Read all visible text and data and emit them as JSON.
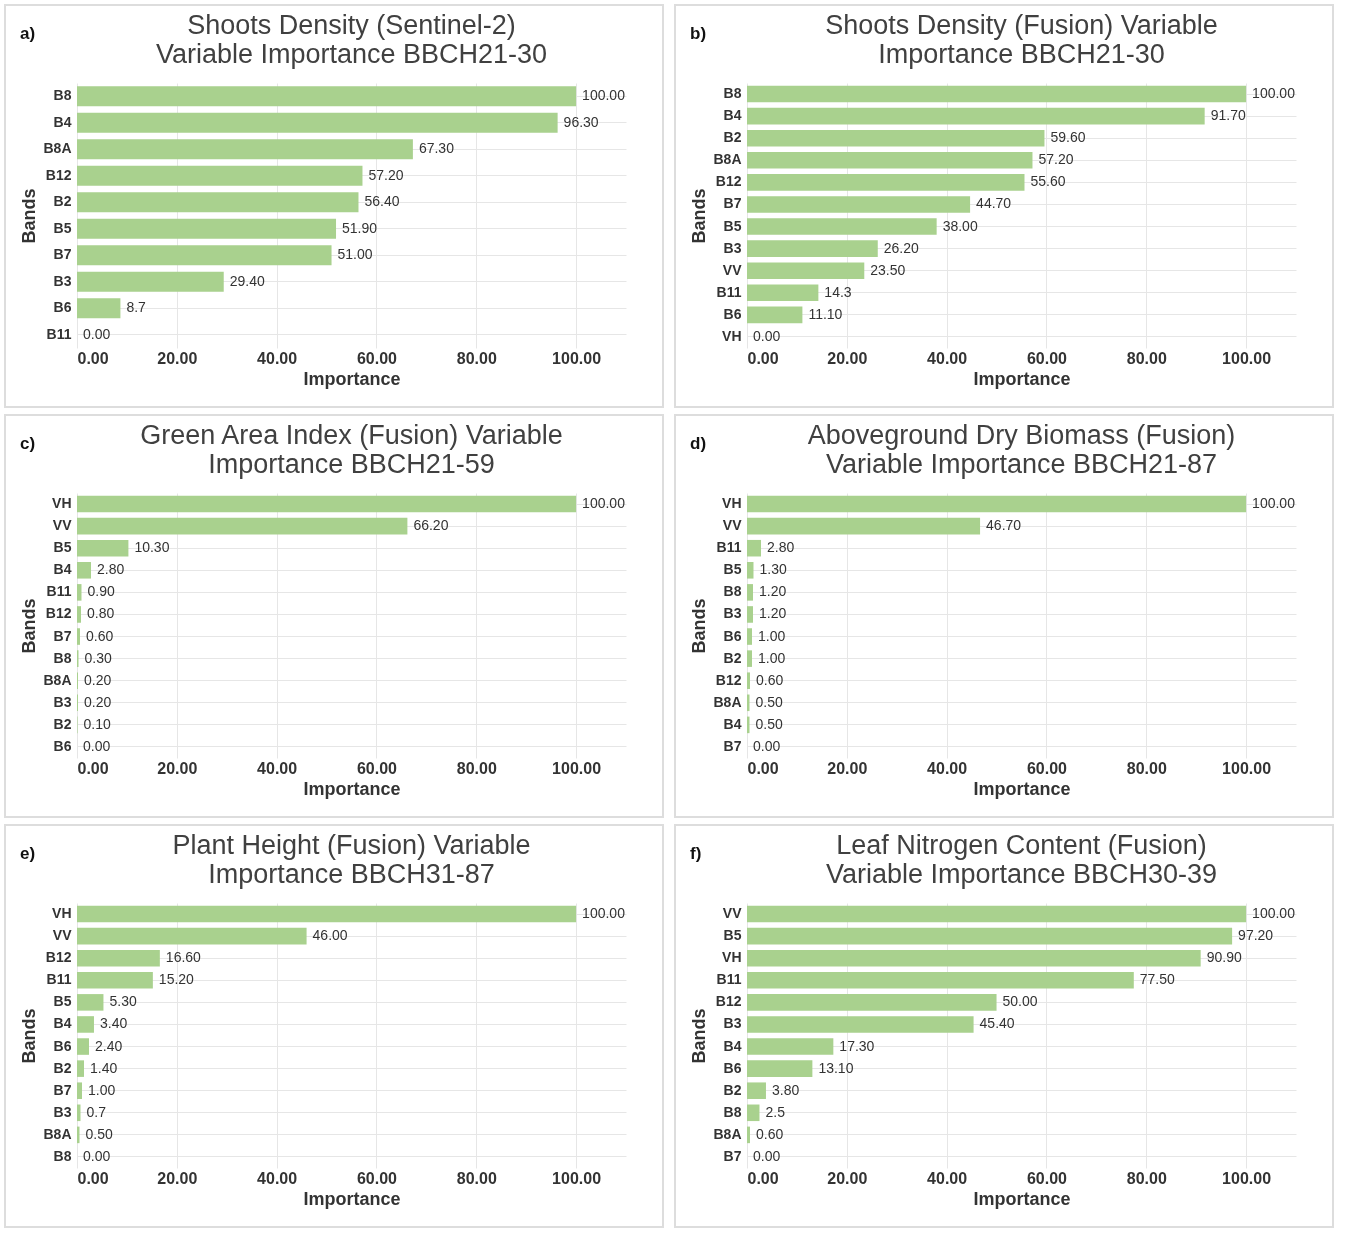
{
  "chart_data": [
    {
      "type": "bar",
      "orientation": "horizontal",
      "title": "Shoots Density (Sentinel-2) Variable Importance BBCH21-30",
      "xlabel": "Importance",
      "ylabel": "Bands",
      "annotations": [
        "a)"
      ],
      "categories": [
        "B8",
        "B4",
        "B8A",
        "B12",
        "B2",
        "B5",
        "B7",
        "B3",
        "B6",
        "B11"
      ],
      "values": [
        100,
        96.3,
        67.3,
        57.2,
        56.4,
        51.9,
        51,
        29.4,
        8.7,
        0
      ],
      "value_labels": [
        "100.00",
        "96.30",
        "67.30",
        "57.20",
        "56.40",
        "51.90",
        "51.00",
        "29.40",
        "8.7",
        "0.00"
      ],
      "color": "#a9d18e",
      "xlim": [
        0,
        110
      ],
      "xticks": [
        {
          "value": 0,
          "label": "0.00"
        },
        {
          "value": 20,
          "label": "20.00"
        },
        {
          "value": 40,
          "label": "40.00"
        },
        {
          "value": 60,
          "label": "60.00"
        },
        {
          "value": 80,
          "label": "80.00"
        },
        {
          "value": 100,
          "label": "100.00"
        }
      ],
      "grid": true
    },
    {
      "type": "bar",
      "orientation": "horizontal",
      "title": "Shoots Density (Fusion) Variable Importance BBCH21-30",
      "xlabel": "Importance",
      "ylabel": "Bands",
      "annotations": [
        "b)"
      ],
      "categories": [
        "B8",
        "B4",
        "B2",
        "B8A",
        "B12",
        "B7",
        "B5",
        "B3",
        "VV",
        "B11",
        "B6",
        "VH"
      ],
      "values": [
        100,
        91.7,
        59.6,
        57.2,
        55.6,
        44.7,
        38,
        26.2,
        23.5,
        14.3,
        11.1,
        0
      ],
      "value_labels": [
        "100.00",
        "91.70",
        "59.60",
        "57.20",
        "55.60",
        "44.70",
        "38.00",
        "26.20",
        "23.50",
        "14.3",
        "11.10",
        "0.00"
      ],
      "color": "#a9d18e",
      "xlim": [
        0,
        110
      ],
      "xticks": [
        {
          "value": 0,
          "label": "0.00"
        },
        {
          "value": 20,
          "label": "20.00"
        },
        {
          "value": 40,
          "label": "40.00"
        },
        {
          "value": 60,
          "label": "60.00"
        },
        {
          "value": 80,
          "label": "80.00"
        },
        {
          "value": 100,
          "label": "100.00"
        }
      ],
      "grid": true
    },
    {
      "type": "bar",
      "orientation": "horizontal",
      "title": "Green Area Index (Fusion) Variable Importance BBCH21-59",
      "xlabel": "Importance",
      "ylabel": "Bands",
      "annotations": [
        "c)"
      ],
      "categories": [
        "VH",
        "VV",
        "B5",
        "B4",
        "B11",
        "B12",
        "B7",
        "B8",
        "B8A",
        "B3",
        "B2",
        "B6"
      ],
      "values": [
        100,
        66.2,
        10.3,
        2.8,
        0.9,
        0.8,
        0.6,
        0.3,
        0.2,
        0.2,
        0.1,
        0
      ],
      "value_labels": [
        "100.00",
        "66.20",
        "10.30",
        "2.80",
        "0.90",
        "0.80",
        "0.60",
        "0.30",
        "0.20",
        "0.20",
        "0.10",
        "0.00"
      ],
      "color": "#a9d18e",
      "xlim": [
        0,
        110
      ],
      "xticks": [
        {
          "value": 0,
          "label": "0.00"
        },
        {
          "value": 20,
          "label": "20.00"
        },
        {
          "value": 40,
          "label": "40.00"
        },
        {
          "value": 60,
          "label": "60.00"
        },
        {
          "value": 80,
          "label": "80.00"
        },
        {
          "value": 100,
          "label": "100.00"
        }
      ],
      "grid": true
    },
    {
      "type": "bar",
      "orientation": "horizontal",
      "title": "Aboveground Dry Biomass (Fusion) Variable Importance BBCH21-87",
      "xlabel": "Importance",
      "ylabel": "Bands",
      "annotations": [
        "d)"
      ],
      "categories": [
        "VH",
        "VV",
        "B11",
        "B5",
        "B8",
        "B3",
        "B6",
        "B2",
        "B12",
        "B8A",
        "B4",
        "B7"
      ],
      "values": [
        100,
        46.7,
        2.8,
        1.3,
        1.2,
        1.2,
        1,
        1,
        0.6,
        0.5,
        0.5,
        0
      ],
      "value_labels": [
        "100.00",
        "46.70",
        "2.80",
        "1.30",
        "1.20",
        "1.20",
        "1.00",
        "1.00",
        "0.60",
        "0.50",
        "0.50",
        "0.00"
      ],
      "color": "#a9d18e",
      "xlim": [
        0,
        110
      ],
      "xticks": [
        {
          "value": 0,
          "label": "0.00"
        },
        {
          "value": 20,
          "label": "20.00"
        },
        {
          "value": 40,
          "label": "40.00"
        },
        {
          "value": 60,
          "label": "60.00"
        },
        {
          "value": 80,
          "label": "80.00"
        },
        {
          "value": 100,
          "label": "100.00"
        }
      ],
      "grid": true
    },
    {
      "type": "bar",
      "orientation": "horizontal",
      "title": "Plant Height (Fusion) Variable Importance BBCH31-87",
      "xlabel": "Importance",
      "ylabel": "Bands",
      "annotations": [
        "e)"
      ],
      "categories": [
        "VH",
        "VV",
        "B12",
        "B11",
        "B5",
        "B4",
        "B6",
        "B2",
        "B7",
        "B3",
        "B8A",
        "B8"
      ],
      "values": [
        100,
        46,
        16.6,
        15.2,
        5.3,
        3.4,
        2.4,
        1.4,
        1,
        0.7,
        0.5,
        0
      ],
      "value_labels": [
        "100.00",
        "46.00",
        "16.60",
        "15.20",
        "5.30",
        "3.40",
        "2.40",
        "1.40",
        "1.00",
        "0.7",
        "0.50",
        "0.00"
      ],
      "color": "#a9d18e",
      "xlim": [
        0,
        110
      ],
      "xticks": [
        {
          "value": 0,
          "label": "0.00"
        },
        {
          "value": 20,
          "label": "20.00"
        },
        {
          "value": 40,
          "label": "40.00"
        },
        {
          "value": 60,
          "label": "60.00"
        },
        {
          "value": 80,
          "label": "80.00"
        },
        {
          "value": 100,
          "label": "100.00"
        }
      ],
      "grid": true
    },
    {
      "type": "bar",
      "orientation": "horizontal",
      "title": "Leaf Nitrogen Content (Fusion) Variable Importance BBCH30-39",
      "xlabel": "Importance",
      "ylabel": "Bands",
      "annotations": [
        "f)"
      ],
      "categories": [
        "VV",
        "B5",
        "VH",
        "B11",
        "B12",
        "B3",
        "B4",
        "B6",
        "B2",
        "B8",
        "B8A",
        "B7"
      ],
      "values": [
        100,
        97.2,
        90.9,
        77.5,
        50,
        45.4,
        17.3,
        13.1,
        3.8,
        2.5,
        0.6,
        0
      ],
      "value_labels": [
        "100.00",
        "97.20",
        "90.90",
        "77.50",
        "50.00",
        "45.40",
        "17.30",
        "13.10",
        "3.80",
        "2.5",
        "0.60",
        "0.00"
      ],
      "color": "#a9d18e",
      "xlim": [
        0,
        110
      ],
      "xticks": [
        {
          "value": 0,
          "label": "0.00"
        },
        {
          "value": 20,
          "label": "20.00"
        },
        {
          "value": 40,
          "label": "40.00"
        },
        {
          "value": 60,
          "label": "60.00"
        },
        {
          "value": 80,
          "label": "80.00"
        },
        {
          "value": 100,
          "label": "100.00"
        }
      ],
      "grid": true
    }
  ]
}
